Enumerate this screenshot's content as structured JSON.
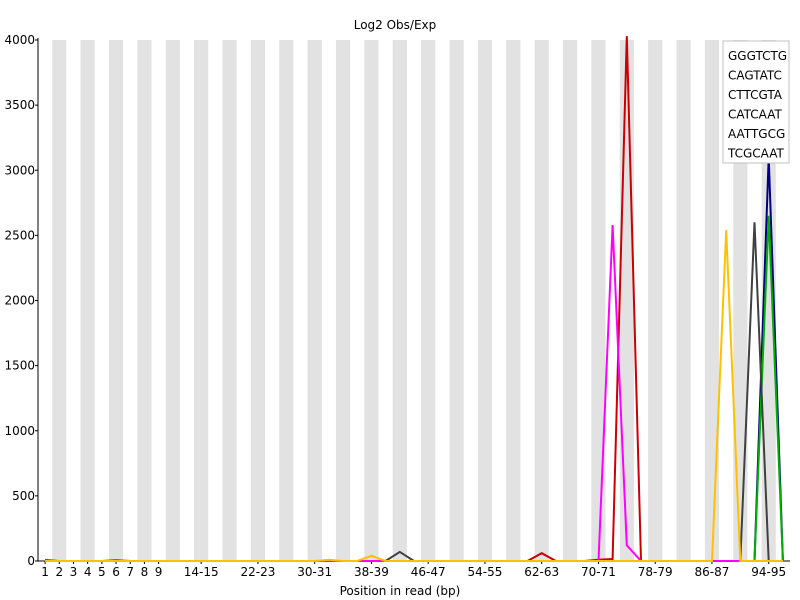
{
  "chart_data": {
    "type": "line",
    "title": "Log2 Obs/Exp",
    "xlabel": "Position in read (bp)",
    "ylabel": "",
    "ylim": [
      0,
      4000
    ],
    "yticks": [
      "0",
      "500",
      "1000",
      "1500",
      "2000",
      "2500",
      "3000",
      "3500",
      "4000"
    ],
    "categories": [
      "1",
      "2",
      "3",
      "4",
      "5",
      "6",
      "7",
      "8",
      "9",
      "10-11",
      "12-13",
      "14-15",
      "16-17",
      "18-19",
      "20-21",
      "22-23",
      "24-25",
      "26-27",
      "28-29",
      "30-31",
      "32-33",
      "34-35",
      "36-37",
      "38-39",
      "40-41",
      "42-43",
      "44-45",
      "46-47",
      "48-49",
      "50-51",
      "52-53",
      "54-55",
      "56-57",
      "58-59",
      "60-61",
      "62-63",
      "64-65",
      "66-67",
      "68-69",
      "70-71",
      "72-73",
      "74-75",
      "76-77",
      "78-79",
      "80-81",
      "82-83",
      "84-85",
      "86-87",
      "88-89",
      "90-91",
      "92-93",
      "94-95",
      "96"
    ],
    "x_tick_labels": [
      "1",
      "2",
      "3",
      "4",
      "5",
      "6",
      "7",
      "8",
      "9",
      "14-15",
      "22-23",
      "30-31",
      "38-39",
      "46-47",
      "54-55",
      "62-63",
      "70-71",
      "78-79",
      "86-87",
      "94-95"
    ],
    "grid": "alternating vertical bands",
    "legend_position": "top-right",
    "series": [
      {
        "name": "GGGTCTG",
        "color": "#cc0000",
        "values": [
          8,
          0,
          0,
          0,
          0,
          0,
          0,
          0,
          0,
          0,
          0,
          0,
          0,
          0,
          0,
          0,
          0,
          0,
          0,
          0,
          0,
          0,
          0,
          0,
          0,
          0,
          0,
          0,
          0,
          0,
          0,
          0,
          0,
          0,
          0,
          60,
          0,
          0,
          0,
          10,
          15,
          4030,
          0,
          0,
          0,
          0,
          0,
          0,
          0,
          0,
          0,
          0,
          0
        ]
      },
      {
        "name": "CAGTATC",
        "color": "#000080",
        "values": [
          0,
          0,
          0,
          0,
          0,
          0,
          0,
          0,
          0,
          0,
          0,
          0,
          0,
          0,
          0,
          0,
          0,
          0,
          0,
          0,
          0,
          0,
          0,
          0,
          0,
          0,
          0,
          0,
          0,
          0,
          0,
          0,
          0,
          0,
          0,
          0,
          0,
          0,
          0,
          0,
          0,
          0,
          0,
          0,
          0,
          0,
          0,
          0,
          0,
          0,
          0,
          3100,
          0
        ]
      },
      {
        "name": "CTTCGTA",
        "color": "#00b000",
        "values": [
          0,
          0,
          0,
          0,
          0,
          8,
          0,
          0,
          0,
          0,
          0,
          0,
          0,
          0,
          0,
          0,
          0,
          0,
          0,
          0,
          0,
          0,
          0,
          0,
          0,
          0,
          0,
          0,
          0,
          0,
          0,
          0,
          0,
          0,
          0,
          0,
          0,
          0,
          0,
          0,
          0,
          0,
          0,
          0,
          0,
          0,
          0,
          0,
          0,
          0,
          0,
          2650,
          0
        ]
      },
      {
        "name": "CATCAAT",
        "color": "#404040",
        "values": [
          0,
          0,
          0,
          0,
          0,
          0,
          0,
          0,
          0,
          0,
          0,
          0,
          0,
          0,
          0,
          0,
          0,
          0,
          0,
          0,
          0,
          0,
          0,
          0,
          0,
          70,
          0,
          0,
          0,
          0,
          0,
          0,
          0,
          0,
          0,
          0,
          0,
          0,
          0,
          0,
          0,
          0,
          0,
          0,
          0,
          0,
          0,
          0,
          0,
          0,
          2600,
          0,
          0
        ]
      },
      {
        "name": "AATTGCG",
        "color": "#ff00ff",
        "values": [
          0,
          0,
          0,
          0,
          0,
          0,
          0,
          0,
          0,
          0,
          0,
          0,
          0,
          0,
          0,
          0,
          0,
          0,
          0,
          0,
          0,
          0,
          0,
          0,
          0,
          0,
          0,
          0,
          0,
          0,
          0,
          0,
          0,
          0,
          0,
          0,
          0,
          0,
          0,
          0,
          2580,
          120,
          0,
          0,
          0,
          0,
          0,
          0,
          0,
          0,
          0,
          0,
          0
        ]
      },
      {
        "name": "TCGCAAT",
        "color": "#ffc000",
        "values": [
          0,
          0,
          0,
          0,
          0,
          0,
          0,
          0,
          0,
          0,
          0,
          0,
          0,
          0,
          0,
          0,
          0,
          0,
          0,
          0,
          10,
          0,
          0,
          40,
          0,
          0,
          0,
          0,
          0,
          0,
          0,
          0,
          0,
          0,
          0,
          0,
          0,
          0,
          0,
          0,
          0,
          0,
          0,
          0,
          0,
          0,
          0,
          0,
          2540,
          0,
          0,
          0,
          0
        ]
      }
    ]
  }
}
